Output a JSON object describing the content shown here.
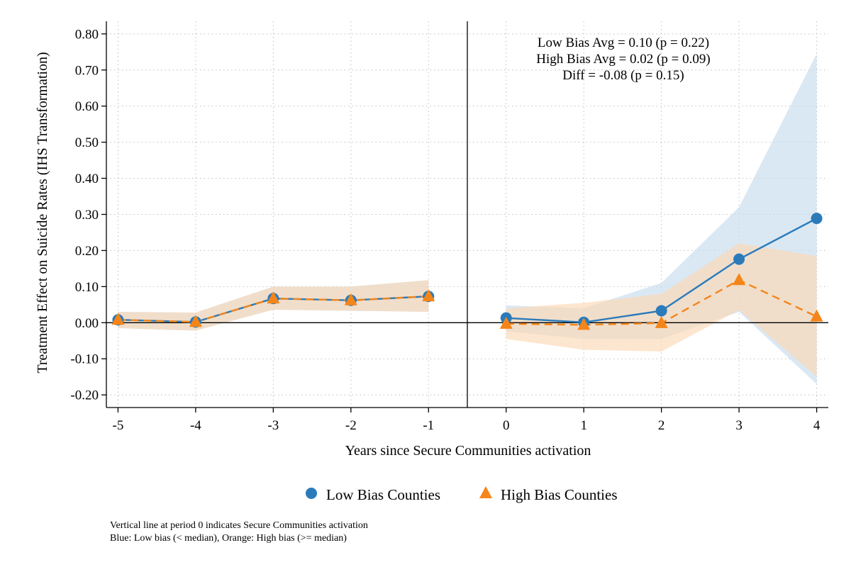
{
  "chart_data": {
    "type": "line",
    "title": "",
    "xlabel": "Years since Secure Communities activation",
    "ylabel": "Treatment Effect on Suicide Rates (IHS Transformation)",
    "x": [
      -5,
      -4,
      -3,
      -2,
      -1,
      0,
      1,
      2,
      3,
      4
    ],
    "xlim": [
      -5.15,
      4.15
    ],
    "ylim": [
      -0.235,
      0.835
    ],
    "x_ticks": [
      "-5",
      "-4",
      "-3",
      "-2",
      "-1",
      "0",
      "1",
      "2",
      "3",
      "4"
    ],
    "y_ticks": [
      -0.2,
      -0.1,
      0.0,
      0.1,
      0.2,
      0.3,
      0.4,
      0.5,
      0.6,
      0.7,
      0.8
    ],
    "y_tick_labels": [
      "-0.20",
      "-0.10",
      "0.00",
      "0.10",
      "0.20",
      "0.30",
      "0.40",
      "0.50",
      "0.60",
      "0.70",
      "0.80"
    ],
    "grid": true,
    "vertical_line_x": -0.5,
    "horizontal_line_y": 0,
    "series": [
      {
        "name": "Low Bias Counties",
        "color": "#2b7bba",
        "marker": "circle",
        "line_style": "solid",
        "values": [
          0.008,
          0.002,
          0.067,
          0.062,
          0.073,
          0.013,
          0.001,
          0.033,
          0.176,
          0.289
        ],
        "ci_lower": [
          -0.015,
          -0.022,
          0.036,
          0.033,
          0.03,
          -0.024,
          -0.045,
          -0.045,
          0.03,
          -0.17
        ],
        "ci_upper": [
          0.03,
          0.028,
          0.1,
          0.1,
          0.118,
          0.048,
          0.04,
          0.11,
          0.32,
          0.745
        ],
        "band_color": "#c6dcee"
      },
      {
        "name": "High Bias Counties",
        "color": "#f58518",
        "marker": "triangle",
        "line_style": "dashed",
        "values": [
          0.008,
          0.002,
          0.067,
          0.062,
          0.073,
          -0.003,
          -0.006,
          -0.001,
          0.118,
          0.017
        ],
        "ci_lower": [
          -0.015,
          -0.022,
          0.036,
          0.033,
          0.03,
          -0.045,
          -0.075,
          -0.08,
          0.035,
          -0.15
        ],
        "ci_upper": [
          0.03,
          0.028,
          0.1,
          0.1,
          0.118,
          0.04,
          0.055,
          0.08,
          0.22,
          0.185
        ],
        "band_color": "#fcd9b6"
      }
    ],
    "annotations": [
      "Low Bias Avg = 0.10 (p = 0.22)",
      "High Bias Avg = 0.02 (p = 0.09)",
      "Diff = -0.08 (p = 0.15)"
    ],
    "legend": {
      "placement": "bottom",
      "entries": [
        "Low Bias Counties",
        "High Bias Counties"
      ]
    },
    "notes": [
      "Vertical line at period 0 indicates Secure Communities activation",
      "Blue: Low bias (< median), Orange: High bias (>= median)"
    ]
  }
}
